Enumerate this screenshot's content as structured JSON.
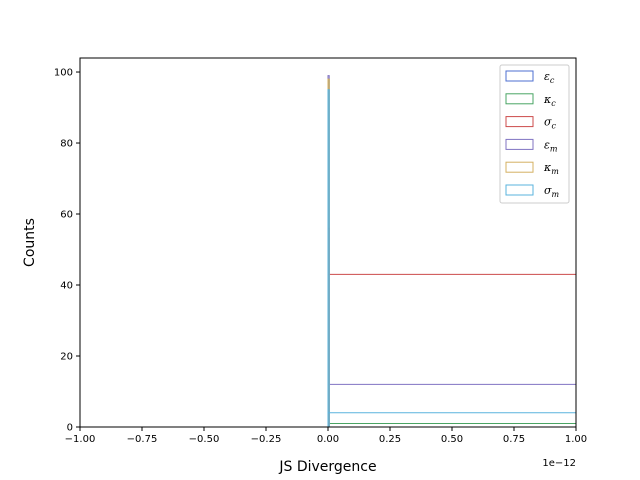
{
  "chart_data": {
    "type": "histogram",
    "xlabel": "JS Divergence",
    "ylabel": "Counts",
    "x_offset_label": "1e−12",
    "xlim": [
      -1.0,
      1.0
    ],
    "ylim": [
      0,
      103.95
    ],
    "x_ticks": [
      -1.0,
      -0.75,
      -0.5,
      -0.25,
      0.0,
      0.25,
      0.5,
      0.75,
      1.0
    ],
    "x_tick_labels": [
      "−1.00",
      "−0.75",
      "−0.50",
      "−0.25",
      "0.00",
      "0.25",
      "0.50",
      "0.75",
      "1.00"
    ],
    "y_ticks": [
      0,
      20,
      40,
      60,
      80,
      100
    ],
    "y_tick_labels": [
      "0",
      "20",
      "40",
      "60",
      "80",
      "100"
    ],
    "x_units_note": "x values in units of 1e-12",
    "legend_position": "upper right",
    "series": [
      {
        "name": "ε",
        "sub": "c",
        "color": "#4c6fd1",
        "bins": [
          {
            "x0": 0.0,
            "x1": 0.0,
            "count": 0
          }
        ]
      },
      {
        "name": "κ",
        "sub": "c",
        "color": "#4aa564",
        "bins": [
          {
            "x0": 0.0,
            "x1": 0.0,
            "count": 98
          },
          {
            "x0": 0.0,
            "x1": 1.0,
            "count": 1
          }
        ]
      },
      {
        "name": "σ",
        "sub": "c",
        "color": "#cc4b4b",
        "bins": [
          {
            "x0": 0.0,
            "x1": 0.0,
            "count": 56
          },
          {
            "x0": 0.0,
            "x1": 1.0,
            "count": 43
          }
        ]
      },
      {
        "name": "ε",
        "sub": "m",
        "color": "#8073c2",
        "bins": [
          {
            "x0": 0.0,
            "x1": 0.0,
            "count": 99
          },
          {
            "x0": 0.0,
            "x1": 1.0,
            "count": 12
          }
        ]
      },
      {
        "name": "κ",
        "sub": "m",
        "color": "#d4b062",
        "bins": [
          {
            "x0": 0.0,
            "x1": 0.0,
            "count": 98
          },
          {
            "x0": 0.0,
            "x1": 1.0,
            "count": 0
          }
        ]
      },
      {
        "name": "σ",
        "sub": "m",
        "color": "#5ab3dd",
        "bins": [
          {
            "x0": 0.0,
            "x1": 0.0,
            "count": 95
          },
          {
            "x0": 0.0,
            "x1": 1.0,
            "count": 4
          }
        ]
      }
    ]
  }
}
